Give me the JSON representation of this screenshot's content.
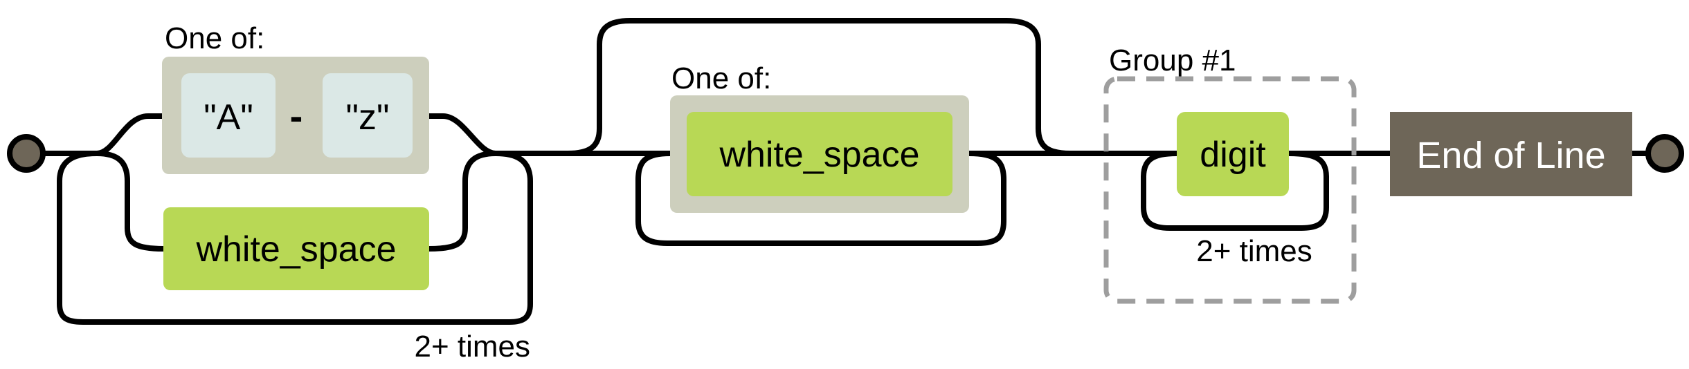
{
  "diagram": {
    "start_label": "",
    "group1": {
      "caption": "One of:",
      "range_from": "\"A\"",
      "range_dash": "-",
      "range_to": "\"z\"",
      "alt_label": "white_space",
      "repeat_label": "2+ times"
    },
    "group2": {
      "caption": "One of:",
      "item_label": "white_space"
    },
    "group3": {
      "caption": "Group #1",
      "item_label": "digit",
      "repeat_label": "2+ times"
    },
    "end_label": "End of Line"
  },
  "colors": {
    "wire": "#000000",
    "terminal_node": "#6e6658",
    "choice_box": "#cdcfbd",
    "literal_box": "#dbe8e6",
    "rule_box": "#b8d855",
    "end_box": "#6e6658",
    "group_border": "#9e9e9e"
  }
}
